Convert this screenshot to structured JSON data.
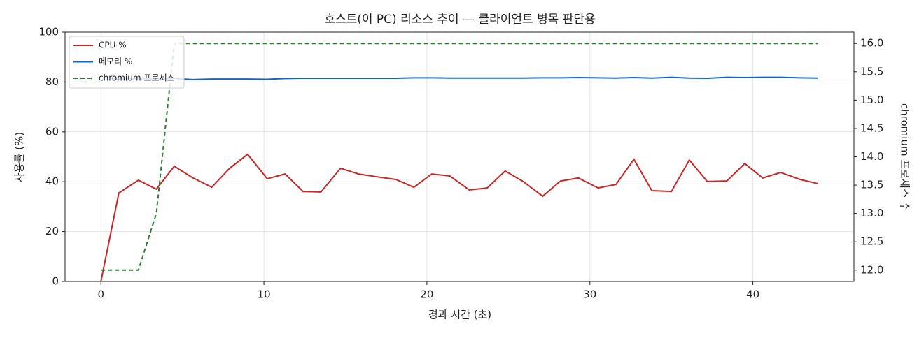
{
  "chart_data": {
    "type": "line",
    "title": "호스트(이 PC) 리소스 추이 — 클라이언트 병목 판단용",
    "xlabel": "경과 시간 (초)",
    "ylabel": "사용률 (%)",
    "y2label": "chromium 프로세스 수",
    "x": [
      0,
      1.1,
      2.3,
      3.4,
      4.5,
      5.6,
      6.8,
      7.9,
      9.0,
      10.2,
      11.3,
      12.4,
      13.5,
      14.7,
      15.8,
      16.9,
      18.1,
      19.2,
      20.3,
      21.4,
      22.6,
      23.7,
      24.8,
      25.9,
      27.1,
      28.2,
      29.3,
      30.5,
      31.6,
      32.7,
      33.8,
      35.0,
      36.1,
      37.2,
      38.4,
      39.5,
      40.6,
      41.7,
      42.9,
      44.0
    ],
    "series": [
      {
        "name": "CPU %",
        "color": "#c62828",
        "dash": false,
        "values": [
          0,
          35.5,
          40.6,
          37,
          46.2,
          41.7,
          37.8,
          45.4,
          51,
          41.2,
          43.1,
          36.1,
          35.9,
          45.4,
          43.1,
          42,
          40.9,
          37.8,
          43.1,
          42.3,
          36.7,
          37.5,
          44.3,
          40.1,
          34.2,
          40.3,
          41.5,
          37.5,
          38.9,
          49,
          36.4,
          36.1,
          48.7,
          40.1,
          40.3,
          47.3,
          41.5,
          43.7,
          40.9,
          39.2
        ]
      },
      {
        "name": "메모리 %",
        "color": "#1565c0",
        "dash": false,
        "values": [
          81.0,
          81.2,
          81.3,
          81.2,
          81.4,
          81.0,
          81.2,
          81.2,
          81.2,
          81.1,
          81.4,
          81.5,
          81.5,
          81.5,
          81.5,
          81.5,
          81.5,
          81.7,
          81.7,
          81.6,
          81.6,
          81.6,
          81.6,
          81.6,
          81.7,
          81.7,
          81.8,
          81.7,
          81.6,
          81.8,
          81.6,
          81.9,
          81.6,
          81.5,
          81.9,
          81.8,
          81.9,
          81.9,
          81.7,
          81.6
        ]
      },
      {
        "name": "chromium 프로세스",
        "color": "#2e7d32",
        "dash": true,
        "axis": "y2",
        "values": [
          12,
          12,
          12,
          13,
          16,
          16,
          16,
          16,
          16,
          16,
          16,
          16,
          16,
          16,
          16,
          16,
          16,
          16,
          16,
          16,
          16,
          16,
          16,
          16,
          16,
          16,
          16,
          16,
          16,
          16,
          16,
          16,
          16,
          16,
          16,
          16,
          16,
          16,
          16,
          16
        ]
      }
    ],
    "xlim": [
      -2.2,
      46.2
    ],
    "xticks": [
      0,
      10,
      20,
      30,
      40
    ],
    "ylim": [
      0,
      100
    ],
    "yticks": [
      0,
      20,
      40,
      60,
      80,
      100
    ],
    "y2lim": [
      11.8,
      16.2
    ],
    "y2ticks": [
      {
        "value": 12,
        "label": "12.0"
      },
      12.5,
      {
        "value": 13,
        "label": "13.0"
      },
      13.5,
      {
        "value": 14,
        "label": "14.0"
      },
      14.5,
      {
        "value": 15,
        "label": "15.0"
      },
      15.5,
      {
        "value": 16,
        "label": "16.0"
      }
    ],
    "grid": true,
    "legend": "upper left"
  }
}
